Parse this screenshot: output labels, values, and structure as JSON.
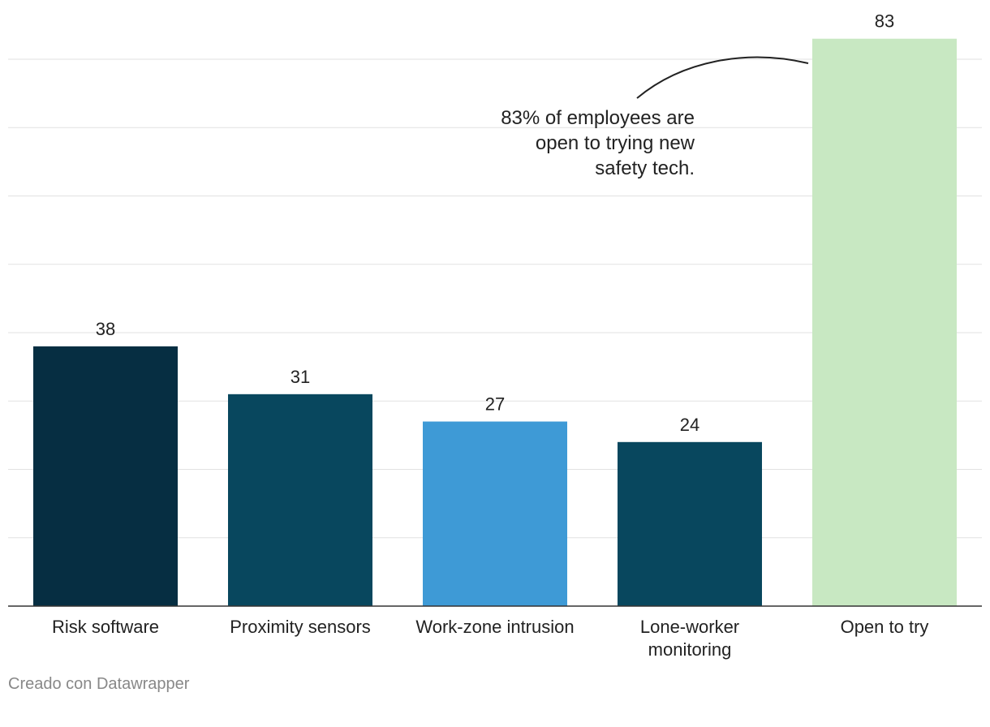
{
  "chart_data": {
    "type": "bar",
    "categories": [
      [
        "Risk software"
      ],
      [
        "Proximity sensors"
      ],
      [
        "Work-zone intrusion"
      ],
      [
        "Lone-worker",
        "monitoring"
      ],
      [
        "Open to try"
      ]
    ],
    "values": [
      38,
      31,
      27,
      24,
      83
    ],
    "colors": [
      "#062e42",
      "#08475e",
      "#3e9ad6",
      "#08475e",
      "#c8e8c2"
    ],
    "value_labels": [
      "38",
      "31",
      "27",
      "24",
      "83"
    ],
    "ylim": [
      0,
      80
    ],
    "gridlines": [
      0,
      10,
      20,
      30,
      40,
      50,
      60,
      70,
      80
    ],
    "annotation": {
      "lines": [
        "83% of employees are",
        "open to trying new",
        "safety tech."
      ]
    }
  },
  "footer": {
    "credit": "Creado con Datawrapper"
  }
}
